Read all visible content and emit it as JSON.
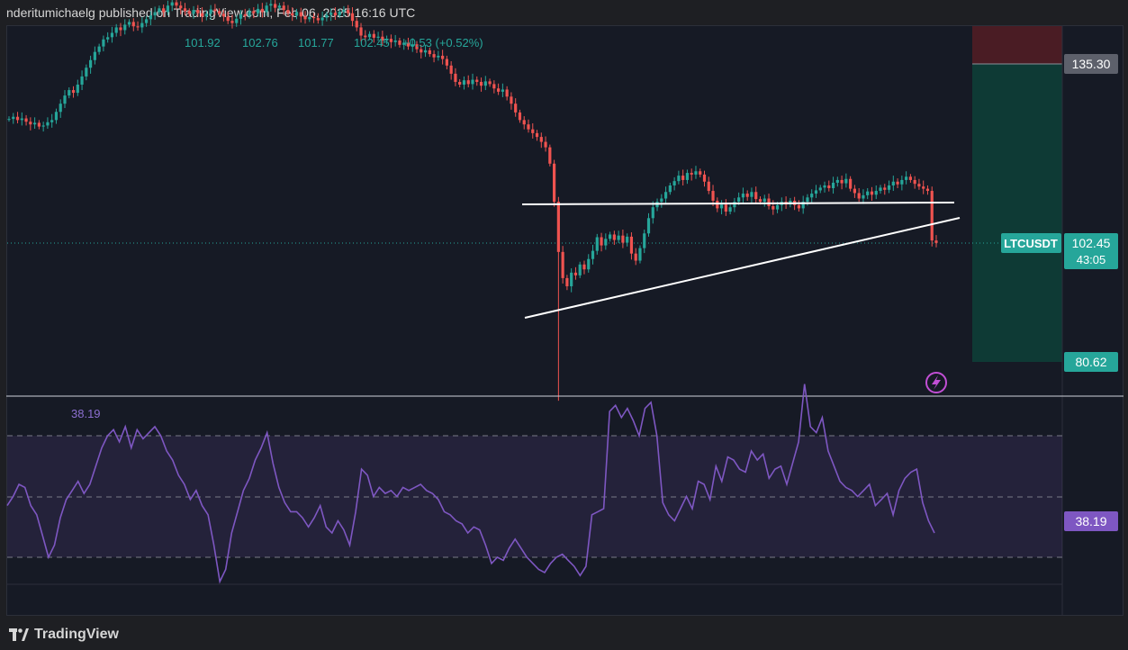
{
  "header": {
    "text": "nderitumichaelg published on TradingView.com, Feb 06, 2025 16:16 UTC"
  },
  "footer": {
    "brand": "TradingView"
  },
  "ohlc": {
    "open": "101.92",
    "high": "102.76",
    "low": "101.77",
    "close": "102.45",
    "change": "+0.53 (+0.52%)"
  },
  "symbol": "LTCUSDT",
  "price_axis": {
    "last_price": "102.45",
    "countdown": "43:05",
    "target_price": "135.30",
    "stop_price": "80.62"
  },
  "rsi": {
    "value_label": "38.19",
    "axis_label": "38.19"
  },
  "colors": {
    "up": "#26a69a",
    "down": "#ef5350",
    "rsi_line": "#7e57c2",
    "rsi_band": "#7e57c2",
    "profit_zone": "#0e3a35",
    "loss_zone": "#4a1c24",
    "background": "#161a25",
    "trendline": "#ffffff"
  },
  "icons": {
    "alert": "lightning-icon",
    "logo": "tradingview-logo-icon"
  },
  "chart_data": [
    {
      "type": "candlestick",
      "symbol": "LTCUSDT",
      "ylim": [
        73,
        138
      ],
      "close_series": [
        125.2,
        125.6,
        125.0,
        125.3,
        124.7,
        124.2,
        124.5,
        123.8,
        124.0,
        124.6,
        125.0,
        126.5,
        128.0,
        129.5,
        130.5,
        130.0,
        131.5,
        133.0,
        134.6,
        136.0,
        137.5,
        138.5,
        139.8,
        140.2,
        141.0,
        142.0,
        141.5,
        142.5,
        143.0,
        142.2,
        142.0,
        142.8,
        143.5,
        144.2,
        144.8,
        145.5,
        144.8,
        146.0,
        146.6,
        146.0,
        145.5,
        145.0,
        144.5,
        145.2,
        144.6,
        144.0,
        144.5,
        145.3,
        145.0,
        144.5,
        144.0,
        143.2,
        142.8,
        143.6,
        144.4,
        144.1,
        145.0,
        144.6,
        145.4,
        144.8,
        146.0,
        146.3,
        145.6,
        146.0,
        145.2,
        144.6,
        144.2,
        144.8,
        144.0,
        143.5,
        143.9,
        143.7,
        143.3,
        143.8,
        144.3,
        144.7,
        144.2,
        144.9,
        145.2,
        144.6,
        143.2,
        142.0,
        140.5,
        140.2,
        140.8,
        140.1,
        140.3,
        139.6,
        139.9,
        139.3,
        139.6,
        138.8,
        139.2,
        138.5,
        138.9,
        138.0,
        137.4,
        137.8,
        137.1,
        136.5,
        136.8,
        136.2,
        135.0,
        133.5,
        132.0,
        131.5,
        132.3,
        131.6,
        132.4,
        132.0,
        131.3,
        132.1,
        131.6,
        130.8,
        130.2,
        130.6,
        129.3,
        128.0,
        126.4,
        125.0,
        124.2,
        123.3,
        122.6,
        121.9,
        121.0,
        120.0,
        117.0,
        110.0,
        100.8,
        96.0,
        94.5,
        97.0,
        96.5,
        98.5,
        97.6,
        99.5,
        101.0,
        103.5,
        102.0,
        103.2,
        104.0,
        103.0,
        103.8,
        102.5,
        103.6,
        100.5,
        99.2,
        101.5,
        104.2,
        107.0,
        109.0,
        110.0,
        110.6,
        111.8,
        113.0,
        113.8,
        114.8,
        114.0,
        115.3,
        115.0,
        115.6,
        115.0,
        113.7,
        112.0,
        110.2,
        108.8,
        109.5,
        108.2,
        109.0,
        110.0,
        110.8,
        111.5,
        110.9,
        111.8,
        110.5,
        110.0,
        110.6,
        109.2,
        108.6,
        109.4,
        110.0,
        109.5,
        110.2,
        109.4,
        108.8,
        110.0,
        110.8,
        111.5,
        112.1,
        112.6,
        113.0,
        112.5,
        113.5,
        114.0,
        113.4,
        114.2,
        112.4,
        111.6,
        110.6,
        111.2,
        111.9,
        111.3,
        112.0,
        112.6,
        112.2,
        113.0,
        113.7,
        113.2,
        114.0,
        114.6,
        114.0,
        113.3,
        112.8,
        112.4,
        112.0,
        102.9,
        102.45
      ]
    },
    {
      "type": "line",
      "title": "RSI",
      "last_value": 38.19,
      "ylim": [
        0,
        100
      ],
      "bands": [
        30,
        50,
        70
      ],
      "series": [
        {
          "values": [
            47,
            50,
            54,
            53,
            47,
            44,
            37,
            30,
            34,
            43,
            49,
            52,
            55,
            51,
            54,
            60,
            66,
            70,
            72,
            68,
            73,
            66,
            72,
            69,
            71,
            73,
            70,
            65,
            62,
            57,
            54,
            49,
            52,
            47,
            44,
            34,
            22,
            26,
            38,
            45,
            52,
            56,
            62,
            66,
            71,
            61,
            53,
            48,
            45,
            45,
            43,
            40,
            43,
            47,
            40,
            38,
            42,
            39,
            34,
            45,
            59,
            57,
            50,
            53,
            51,
            52,
            50,
            53,
            52,
            53,
            54,
            52,
            51,
            49,
            45,
            44,
            42,
            41,
            38,
            40,
            39,
            34,
            28,
            30,
            29,
            33,
            36,
            33,
            30,
            28,
            26,
            25,
            28,
            30,
            31,
            29,
            27,
            24,
            27,
            44,
            45,
            46,
            78,
            80,
            76,
            79,
            75,
            70,
            79,
            81,
            70,
            48,
            44,
            42,
            46,
            50,
            46,
            55,
            54,
            49,
            60,
            55,
            63,
            62,
            59,
            58,
            65,
            62,
            64,
            56,
            59,
            60,
            54,
            61,
            68,
            87,
            73,
            71,
            76,
            65,
            60,
            55,
            53,
            52,
            50,
            52,
            54,
            47,
            49,
            51,
            44,
            52,
            56,
            58,
            59,
            48,
            42,
            38
          ]
        }
      ]
    }
  ]
}
